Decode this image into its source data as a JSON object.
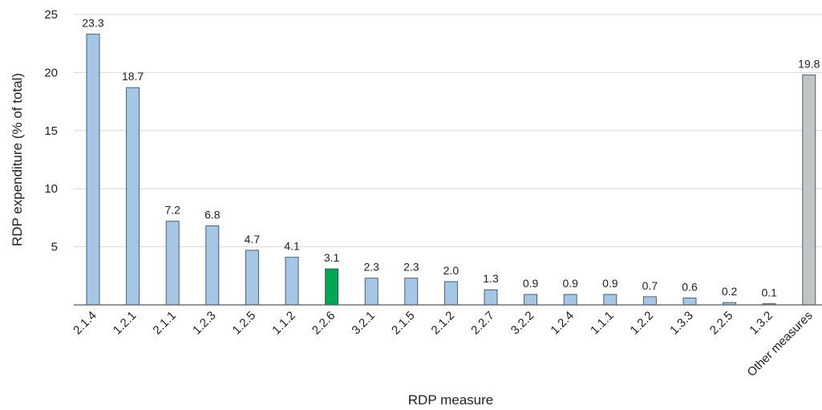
{
  "chart_data": {
    "type": "bar",
    "xlabel": "RDP measure",
    "ylabel": "RDP expenditure (% of total)",
    "ylim": [
      0,
      25
    ],
    "yticks": [
      0,
      5,
      10,
      15,
      20,
      25
    ],
    "ytick_labels": [
      "",
      "5",
      "10",
      "15",
      "20",
      "25"
    ],
    "grid": true,
    "categories": [
      "2.1.4",
      "1.2.1",
      "2.1.1",
      "1.2.3",
      "1.2.5",
      "1.1.2",
      "2.2.6",
      "3.2.1",
      "2.1.5",
      "2.1.2",
      "2.2.7",
      "3.2.2",
      "1.2.4",
      "1.1.1",
      "1.2.2",
      "1.3.3",
      "2.2.5",
      "1.3.2",
      "Other measures"
    ],
    "values": [
      23.3,
      18.7,
      7.2,
      6.8,
      4.7,
      4.1,
      3.1,
      2.3,
      2.3,
      2.0,
      1.3,
      0.9,
      0.9,
      0.9,
      0.7,
      0.6,
      0.2,
      0.1,
      19.8
    ],
    "value_labels": [
      "23.3",
      "18.7",
      "7.2",
      "6.8",
      "4.7",
      "4.1",
      "3.1",
      "2.3",
      "2.3",
      "2.0",
      "1.3",
      "0.9",
      "0.9",
      "0.9",
      "0.7",
      "0.6",
      "0.2",
      "0.1",
      "19.8"
    ],
    "bar_colors": [
      "#a6c6e6",
      "#a6c6e6",
      "#a6c6e6",
      "#a6c6e6",
      "#a6c6e6",
      "#a6c6e6",
      "#00a651",
      "#a6c6e6",
      "#a6c6e6",
      "#a6c6e6",
      "#a6c6e6",
      "#a6c6e6",
      "#a6c6e6",
      "#a6c6e6",
      "#a6c6e6",
      "#a6c6e6",
      "#a6c6e6",
      "#a6c6e6",
      "#c4c4c4"
    ],
    "colors": {
      "default_bar": "#a6c6e6",
      "highlight_bar": "#00a651",
      "other_bar": "#c4c4c4",
      "bar_edge": "#3a5068",
      "grid": "#d9d9d9",
      "axis": "#595959"
    }
  }
}
